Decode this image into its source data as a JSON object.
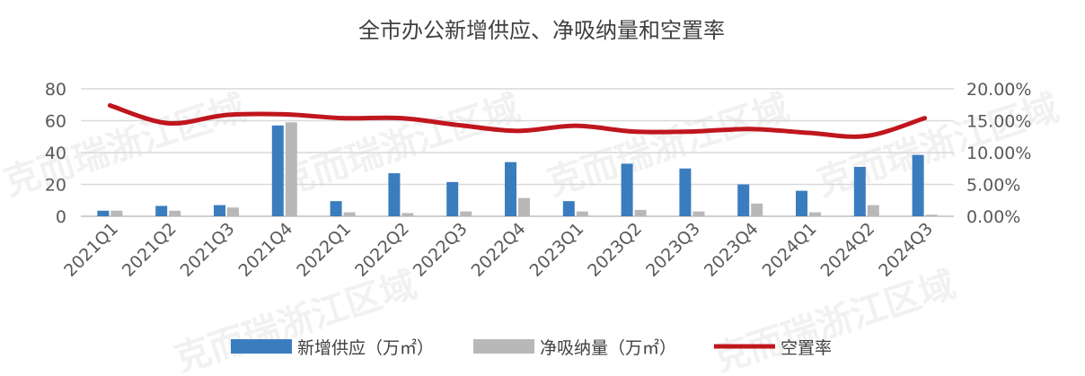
{
  "chart_data": {
    "type": "bar",
    "title": "全市办公新增供应、净吸纳量和空置率",
    "categories": [
      "2021Q1",
      "2021Q2",
      "2021Q3",
      "2021Q4",
      "2022Q1",
      "2022Q2",
      "2022Q3",
      "2022Q4",
      "2023Q1",
      "2023Q2",
      "2023Q3",
      "2023Q4",
      "2024Q1",
      "2024Q2",
      "2024Q3"
    ],
    "series": [
      {
        "name": "新增供应（万㎡）",
        "type": "bar",
        "axis": "left",
        "color": "#3a7dbf",
        "values": [
          3.5,
          6.5,
          7,
          57,
          9.5,
          27,
          21.5,
          34,
          9.5,
          33,
          30,
          20,
          16,
          31,
          38.5
        ]
      },
      {
        "name": "净吸纳量（万㎡）",
        "type": "bar",
        "axis": "left",
        "color": "#b8b8b8",
        "values": [
          3.5,
          3.5,
          5.5,
          59,
          2.5,
          2,
          3,
          11.5,
          3,
          4,
          3,
          8,
          2.5,
          7,
          1
        ]
      },
      {
        "name": "空置率",
        "type": "line",
        "axis": "right",
        "color": "#c0161d",
        "values": [
          17.4,
          14.6,
          15.9,
          16.0,
          15.4,
          15.4,
          14.3,
          13.4,
          14.2,
          13.3,
          13.3,
          13.7,
          13.1,
          12.6,
          15.4
        ]
      }
    ],
    "y_left": {
      "ylim": [
        0,
        80
      ],
      "ticks": [
        "0",
        "20",
        "40",
        "60",
        "80"
      ]
    },
    "y_right": {
      "ylim": [
        0,
        20
      ],
      "ticks": [
        "0.00%",
        "5.00%",
        "10.00%",
        "15.00%",
        "20.00%"
      ]
    },
    "grid": true,
    "legend": "bottom",
    "watermark": "克而瑞浙江区域"
  }
}
